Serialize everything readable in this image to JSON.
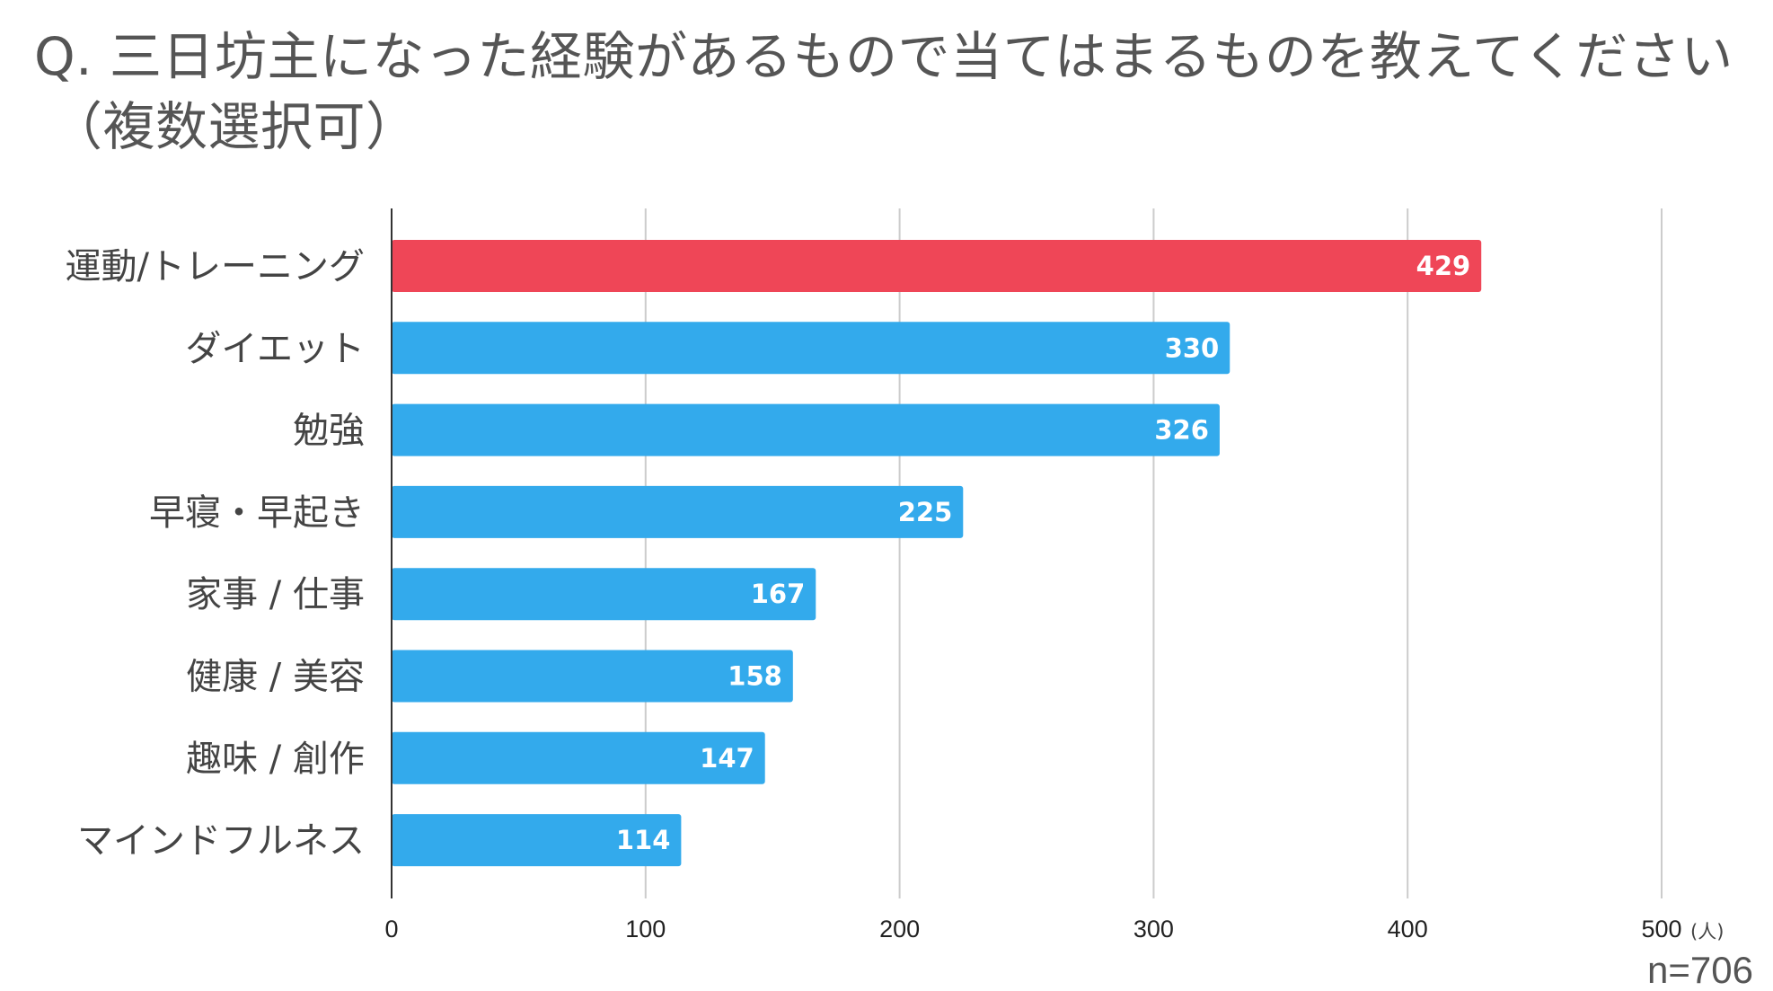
{
  "title": {
    "line1": "Q. 三日坊主になった経験があるもので当てはまるものを教えてください",
    "line2": "（複数選択可）"
  },
  "sample_size": "n=706",
  "colors": {
    "highlight": "#EF4657",
    "default": "#33AAEC",
    "grid": "#CCCCCC",
    "axis": "#333333"
  },
  "chart_data": {
    "type": "bar",
    "orientation": "horizontal",
    "title": "Q. 三日坊主になった経験があるもので当てはまるものを教えてください（複数選択可）",
    "categories": [
      "運動/トレーニング",
      "ダイエット",
      "勉強",
      "早寝・早起き",
      "家事 / 仕事",
      "健康 / 美容",
      "趣味 / 創作",
      "マインドフルネス"
    ],
    "values": [
      429,
      330,
      326,
      225,
      167,
      158,
      147,
      114
    ],
    "highlight_index": 0,
    "xlim": [
      0,
      500
    ],
    "xticks": [
      0,
      100,
      200,
      300,
      400,
      500
    ],
    "x_unit": "(人)",
    "grid": true,
    "xlabel": "",
    "ylabel": ""
  }
}
